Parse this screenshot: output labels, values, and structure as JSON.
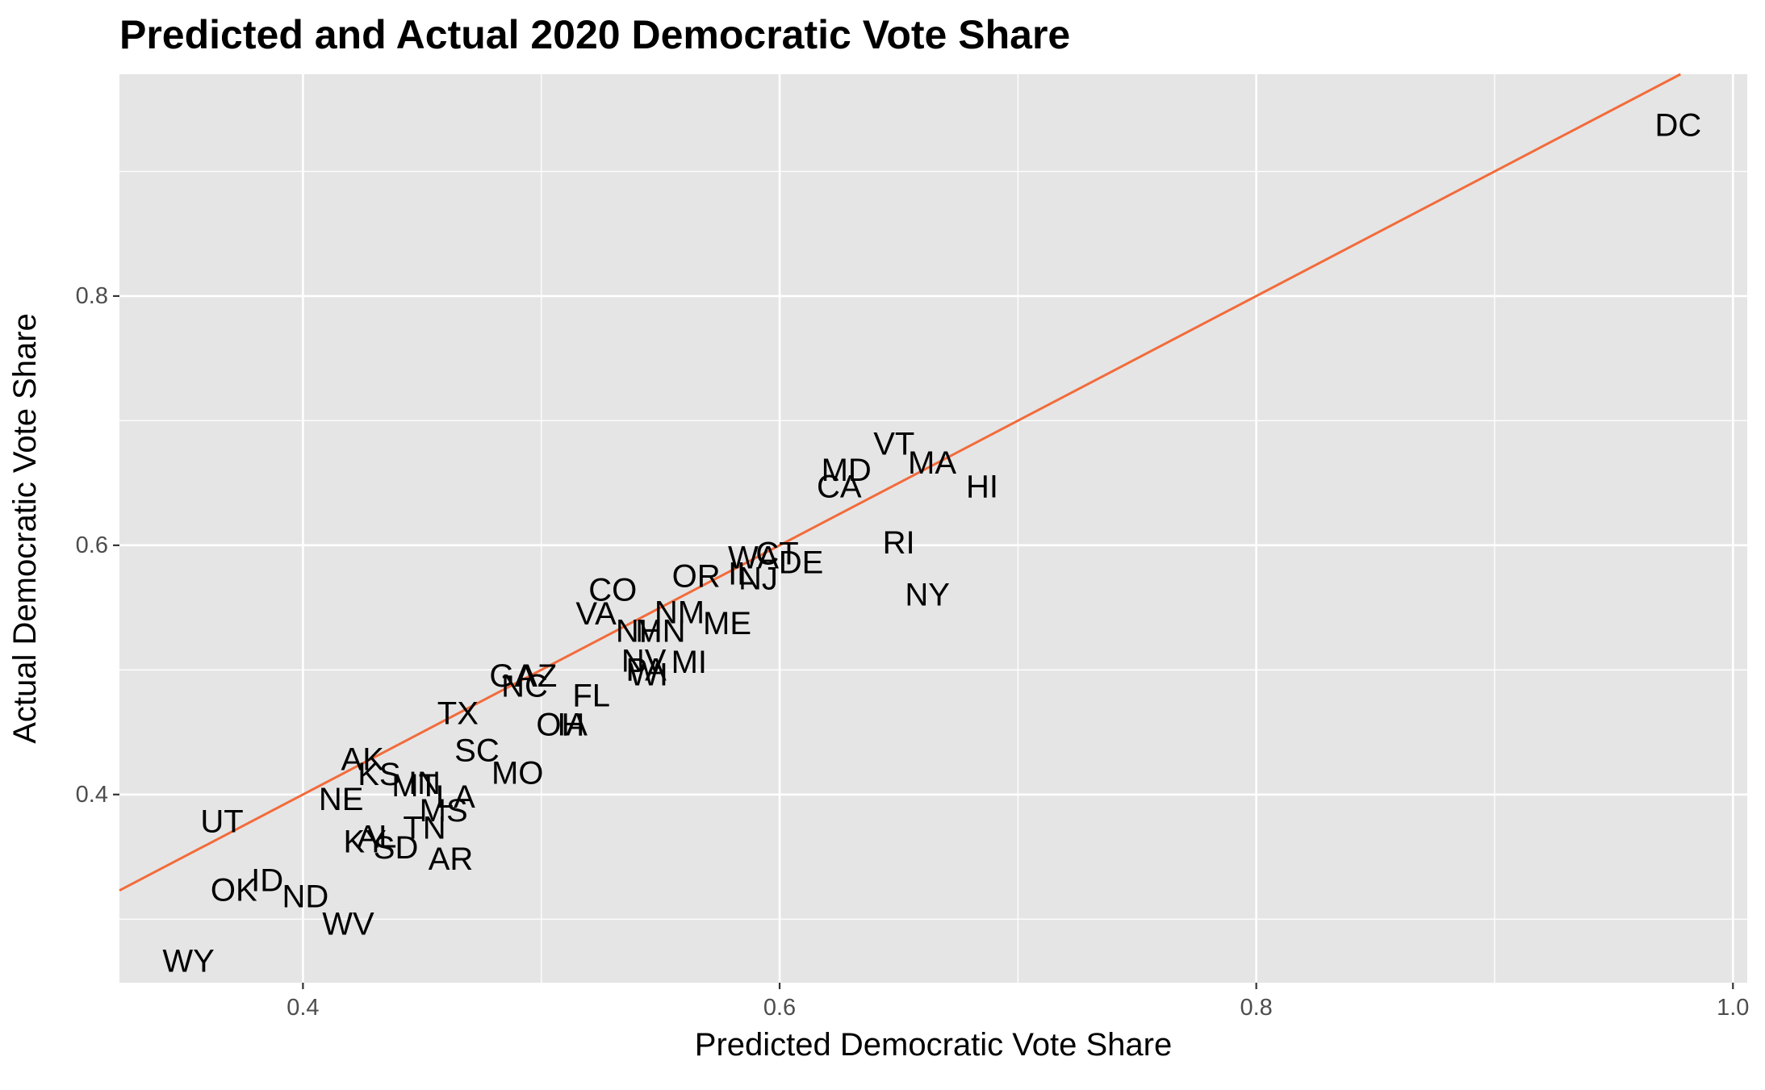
{
  "chart_data": {
    "type": "scatter",
    "title": "Predicted and Actual 2020 Democratic Vote Share",
    "xlabel": "Predicted Democratic Vote Share",
    "ylabel": "Actual Democratic Vote Share",
    "xlim": [
      0.323,
      1.006
    ],
    "ylim": [
      0.249,
      0.978
    ],
    "x_ticks": [
      0.4,
      0.6,
      0.8,
      1.0
    ],
    "x_tick_labels": [
      "0.4",
      "0.6",
      "0.8",
      "1.0"
    ],
    "y_ticks": [
      0.4,
      0.6,
      0.8
    ],
    "y_tick_labels": [
      "0.4",
      "0.6",
      "0.8"
    ],
    "grid": true,
    "background_color": "#e5e5e5",
    "line_color": "#f26b3a",
    "reference_line": {
      "type": "y=x",
      "label": ""
    },
    "points": [
      {
        "label": "DC",
        "x": 0.977,
        "y": 0.937
      },
      {
        "label": "VT",
        "x": 0.648,
        "y": 0.681
      },
      {
        "label": "MA",
        "x": 0.664,
        "y": 0.666
      },
      {
        "label": "MD",
        "x": 0.628,
        "y": 0.66
      },
      {
        "label": "HI",
        "x": 0.685,
        "y": 0.647
      },
      {
        "label": "CA",
        "x": 0.625,
        "y": 0.647
      },
      {
        "label": "RI",
        "x": 0.65,
        "y": 0.602
      },
      {
        "label": "WA",
        "x": 0.589,
        "y": 0.59
      },
      {
        "label": "CT",
        "x": 0.599,
        "y": 0.593
      },
      {
        "label": "IL",
        "x": 0.584,
        "y": 0.577
      },
      {
        "label": "DE",
        "x": 0.609,
        "y": 0.586
      },
      {
        "label": "OR",
        "x": 0.565,
        "y": 0.575
      },
      {
        "label": "NJ",
        "x": 0.591,
        "y": 0.573
      },
      {
        "label": "NY",
        "x": 0.662,
        "y": 0.56
      },
      {
        "label": "CO",
        "x": 0.53,
        "y": 0.564
      },
      {
        "label": "VA",
        "x": 0.523,
        "y": 0.545
      },
      {
        "label": "NM",
        "x": 0.558,
        "y": 0.546
      },
      {
        "label": "ME",
        "x": 0.578,
        "y": 0.537
      },
      {
        "label": "NH",
        "x": 0.541,
        "y": 0.531
      },
      {
        "label": "MN",
        "x": 0.55,
        "y": 0.531
      },
      {
        "label": "MI",
        "x": 0.562,
        "y": 0.506
      },
      {
        "label": "NV",
        "x": 0.543,
        "y": 0.507
      },
      {
        "label": "PA",
        "x": 0.544,
        "y": 0.5
      },
      {
        "label": "WI",
        "x": 0.545,
        "y": 0.496
      },
      {
        "label": "GA",
        "x": 0.488,
        "y": 0.495
      },
      {
        "label": "AZ",
        "x": 0.498,
        "y": 0.495
      },
      {
        "label": "NC",
        "x": 0.493,
        "y": 0.487
      },
      {
        "label": "FL",
        "x": 0.521,
        "y": 0.479
      },
      {
        "label": "TX",
        "x": 0.465,
        "y": 0.465
      },
      {
        "label": "IA",
        "x": 0.513,
        "y": 0.456
      },
      {
        "label": "OH",
        "x": 0.508,
        "y": 0.456
      },
      {
        "label": "SC",
        "x": 0.473,
        "y": 0.435
      },
      {
        "label": "AK",
        "x": 0.425,
        "y": 0.428
      },
      {
        "label": "KS",
        "x": 0.432,
        "y": 0.416
      },
      {
        "label": "MO",
        "x": 0.49,
        "y": 0.417
      },
      {
        "label": "MT",
        "x": 0.447,
        "y": 0.407
      },
      {
        "label": "IN",
        "x": 0.451,
        "y": 0.409
      },
      {
        "label": "LA",
        "x": 0.464,
        "y": 0.398
      },
      {
        "label": "NE",
        "x": 0.416,
        "y": 0.396
      },
      {
        "label": "MS",
        "x": 0.459,
        "y": 0.387
      },
      {
        "label": "UT",
        "x": 0.366,
        "y": 0.378
      },
      {
        "label": "TN",
        "x": 0.451,
        "y": 0.373
      },
      {
        "label": "AL",
        "x": 0.431,
        "y": 0.366
      },
      {
        "label": "KY",
        "x": 0.426,
        "y": 0.362
      },
      {
        "label": "SD",
        "x": 0.439,
        "y": 0.357
      },
      {
        "label": "AR",
        "x": 0.462,
        "y": 0.348
      },
      {
        "label": "ID",
        "x": 0.385,
        "y": 0.331
      },
      {
        "label": "OK",
        "x": 0.371,
        "y": 0.323
      },
      {
        "label": "ND",
        "x": 0.401,
        "y": 0.318
      },
      {
        "label": "WV",
        "x": 0.419,
        "y": 0.296
      },
      {
        "label": "WY",
        "x": 0.352,
        "y": 0.266
      }
    ]
  }
}
